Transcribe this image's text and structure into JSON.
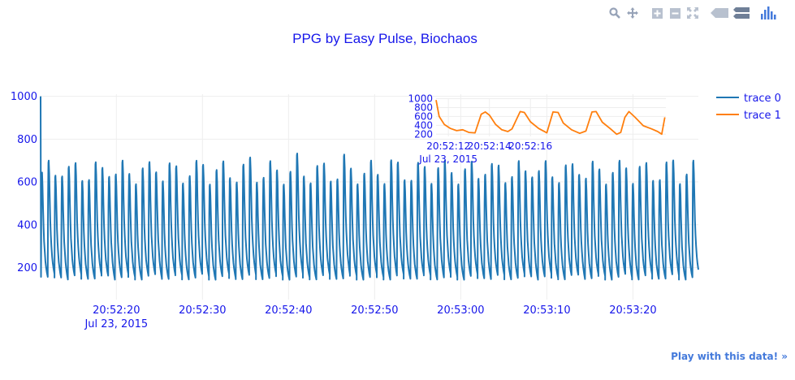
{
  "title": "PPG by Easy Pulse, Biochaos",
  "footer": {
    "play_link": "Play with this data! »"
  },
  "colors": {
    "trace0": "#1f77b4",
    "trace1": "#ff7f0e",
    "text": "#1616ea",
    "grid": "#eeeeee",
    "link": "#447adb"
  },
  "modebar": [
    "zoom-icon",
    "pan-icon",
    "zoom-in-icon",
    "zoom-out-icon",
    "autoscale-icon",
    "hover-closest-icon",
    "hover-compare-icon",
    "plotly-logo-icon"
  ],
  "chart_data": [
    {
      "type": "line",
      "title": "PPG by Easy Pulse, Biochaos",
      "series": [
        {
          "name": "trace 0",
          "period_s": 0.78,
          "pulse_shape": [
            [
              0.0,
              170
            ],
            [
              0.05,
              540
            ],
            [
              0.1,
              690
            ],
            [
              0.15,
              700
            ],
            [
              0.22,
              640
            ],
            [
              0.3,
              520
            ],
            [
              0.38,
              420
            ],
            [
              0.46,
              350
            ],
            [
              0.55,
              300
            ],
            [
              0.65,
              250
            ],
            [
              0.75,
              220
            ],
            [
              0.88,
              190
            ],
            [
              1.0,
              170
            ]
          ],
          "start": "20:52:11.2",
          "end": "20:53:27.6",
          "initial_value": 1000
        }
      ],
      "x_ticks": [
        "20:52:20",
        "20:52:30",
        "20:52:40",
        "20:52:50",
        "20:53:00",
        "20:53:10",
        "20:53:20"
      ],
      "x_date_label": "Jul 23, 2015",
      "y_ticks": [
        200,
        400,
        600,
        800,
        1000
      ],
      "xlim": [
        "20:52:11.2",
        "20:53:27.6"
      ],
      "ylim": [
        50,
        1010
      ],
      "grid": true,
      "legend": "top-right"
    },
    {
      "type": "line",
      "series": [
        {
          "name": "trace 1",
          "points": [
            [
              "20:52:11.4",
              970
            ],
            [
              "20:52:11.55",
              600
            ],
            [
              "20:52:11.8",
              420
            ],
            [
              "20:52:12.1",
              330
            ],
            [
              "20:52:12.4",
              280
            ],
            [
              "20:52:12.7",
              300
            ],
            [
              "20:52:13.0",
              240
            ],
            [
              "20:52:13.3",
              230
            ],
            [
              "20:52:13.6",
              650
            ],
            [
              "20:52:13.8",
              700
            ],
            [
              "20:52:14.0",
              630
            ],
            [
              "20:52:14.3",
              420
            ],
            [
              "20:52:14.6",
              300
            ],
            [
              "20:52:14.9",
              260
            ],
            [
              "20:52:15.1",
              320
            ],
            [
              "20:52:15.5",
              710
            ],
            [
              "20:52:15.7",
              690
            ],
            [
              "20:52:16.0",
              480
            ],
            [
              "20:52:16.4",
              330
            ],
            [
              "20:52:16.8",
              230
            ],
            [
              "20:52:17.1",
              700
            ],
            [
              "20:52:17.35",
              690
            ],
            [
              "20:52:17.6",
              450
            ],
            [
              "20:52:18.0",
              300
            ],
            [
              "20:52:18.4",
              220
            ],
            [
              "20:52:18.7",
              270
            ],
            [
              "20:52:19.0",
              700
            ],
            [
              "20:52:19.2",
              710
            ],
            [
              "20:52:19.5",
              470
            ],
            [
              "20:52:19.9",
              320
            ],
            [
              "20:52:20.2",
              200
            ],
            [
              "20:52:20.4",
              240
            ],
            [
              "20:52:20.6",
              580
            ],
            [
              "20:52:20.8",
              710
            ],
            [
              "20:52:21.1",
              580
            ],
            [
              "20:52:21.5",
              390
            ],
            [
              "20:52:21.9",
              320
            ],
            [
              "20:52:22.2",
              260
            ],
            [
              "20:52:22.4",
              200
            ],
            [
              "20:52:22.55",
              580
            ]
          ]
        }
      ],
      "x_ticks": [
        "20:52:12",
        "20:52:14",
        "20:52:16"
      ],
      "x_date_label": "Jul 23, 2015",
      "y_ticks": [
        200,
        400,
        600,
        800,
        1000
      ],
      "xlim": [
        "20:52:11.4",
        "20:52:22.6"
      ],
      "ylim": [
        150,
        1010
      ],
      "grid": true
    }
  ]
}
